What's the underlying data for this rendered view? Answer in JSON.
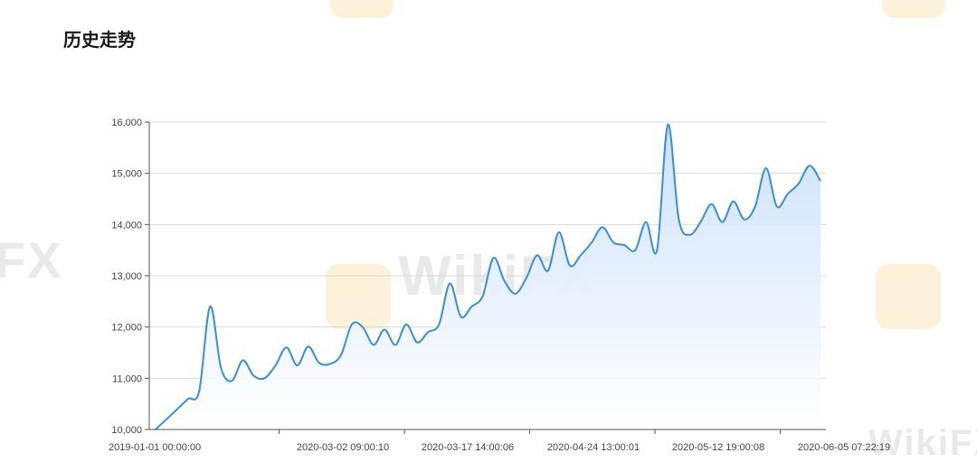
{
  "page": {
    "title": "历史走势"
  },
  "watermark": {
    "text": "WikiFX",
    "partial_left": "FX"
  },
  "colors": {
    "line": "#3a8ed8",
    "area_top": "#c9e0fb",
    "area_bottom": "#ffffff",
    "grid": "#d9d9d9",
    "axis": "#555555"
  },
  "chart_data": {
    "type": "area",
    "title": "历史走势",
    "xlabel": "",
    "ylabel": "",
    "ylim": [
      10000,
      16000
    ],
    "y_ticks": [
      "10,000",
      "11,000",
      "12,000",
      "13,000",
      "14,000",
      "15,000",
      "16,000"
    ],
    "y_tick_values": [
      10000,
      11000,
      12000,
      13000,
      14000,
      15000,
      16000
    ],
    "x_ticks": [
      "2019-01-01 00:00:00",
      "2020-03-02 09:00:10",
      "2020-03-17 14:00:06",
      "2020-04-24 13:00:01",
      "2020-05-12 19:00:08",
      "2020-06-05 07:22:19"
    ],
    "grid": true,
    "values": [
      10000,
      10200,
      10400,
      10600,
      10750,
      12400,
      11200,
      10950,
      11350,
      11050,
      11000,
      11250,
      11600,
      11250,
      11620,
      11300,
      11280,
      11450,
      12050,
      12000,
      11650,
      11950,
      11650,
      12050,
      11700,
      11900,
      12050,
      12850,
      12200,
      12400,
      12600,
      13350,
      12900,
      12650,
      12950,
      13400,
      13100,
      13850,
      13200,
      13400,
      13650,
      13950,
      13650,
      13600,
      13500,
      14050,
      13500,
      15950,
      14100,
      13800,
      14050,
      14400,
      14050,
      14450,
      14100,
      14350,
      15100,
      14350,
      14600,
      14800,
      15150,
      14850
    ]
  }
}
